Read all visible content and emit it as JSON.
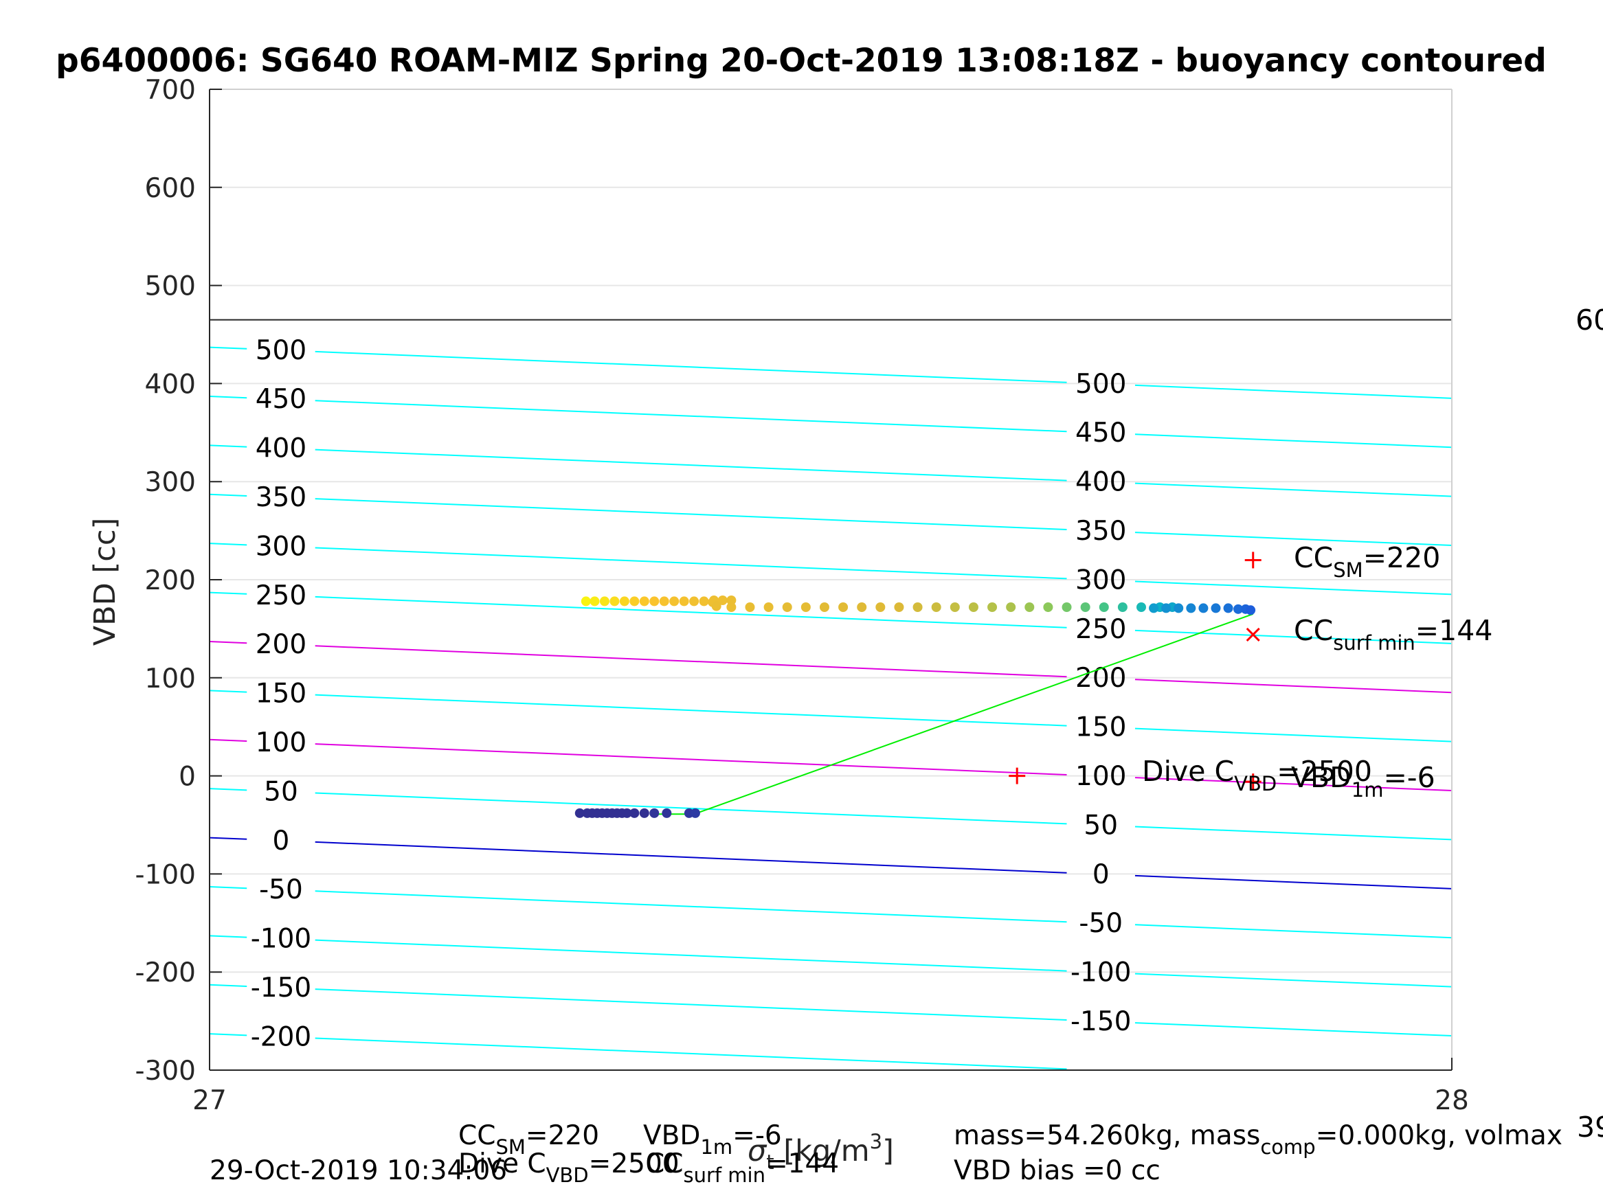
{
  "title": "p6400006: SG640 ROAM-MIZ Spring 20-Oct-2019 13:08:18Z - buoyancy contoured",
  "ylabel": "VBD [cc]",
  "xlabel_prefix": "σ",
  "xlabel_sub": "t",
  "xlabel_unit": " [kg/m",
  "xlabel_sup": "3",
  "xlabel_close": "]",
  "colors": {
    "contour": "#00ffff",
    "contour_zero": "#0000cd",
    "magenta": "#e000e0",
    "fit_line": "#00ee00",
    "marker": "#ff0000",
    "axis": "#262626",
    "grid": "#e6e6e6"
  },
  "chart_data": {
    "type": "scatter",
    "title": "p6400006: SG640 ROAM-MIZ Spring 20-Oct-2019 13:08:18Z - buoyancy contoured",
    "xlabel": "σt [kg/m3]",
    "ylabel": "VBD [cc]",
    "xlim": [
      27,
      28
    ],
    "ylim": [
      -300,
      700
    ],
    "xticks": [
      "27",
      "28"
    ],
    "yticks": [
      "-300",
      "-200",
      "-100",
      "0",
      "100",
      "200",
      "300",
      "400",
      "500",
      "600",
      "700"
    ],
    "grid": true,
    "horizontal_line": {
      "y": 465
    },
    "buoyancy_contours": {
      "levels": [
        -200,
        -150,
        -100,
        -50,
        0,
        50,
        100,
        150,
        200,
        250,
        300,
        350,
        400,
        450,
        500
      ],
      "left_labels": [
        "-200",
        "-150",
        "-100",
        "-50",
        "0",
        "50",
        "100",
        "150",
        "200",
        "250",
        "300",
        "350",
        "400",
        "450",
        "500"
      ],
      "right_labels": [
        "-150",
        "-100",
        "-50",
        "0",
        "50",
        "100",
        "150",
        "200",
        "250",
        "300",
        "350",
        "400",
        "450",
        "500"
      ],
      "vbd_at_x27": {
        "-200": -263,
        "-150": -213,
        "-100": -163,
        "-50": -113,
        "0": -63,
        "50": -13,
        "100": 37,
        "150": 87,
        "200": 137,
        "250": 187,
        "300": 237,
        "350": 287,
        "400": 337,
        "450": 387,
        "500": 437
      },
      "slope_vbd_per_sigma": -52,
      "magenta_levels": [
        100,
        200
      ],
      "zero_level": 0
    },
    "series": [
      {
        "name": "",
        "kind": "scatter",
        "colormap": "parula",
        "points": [
          {
            "x": 27.303,
            "y": 178,
            "c": 0.98
          },
          {
            "x": 27.31,
            "y": 178,
            "c": 0.96
          },
          {
            "x": 27.318,
            "y": 178,
            "c": 0.94
          },
          {
            "x": 27.326,
            "y": 178,
            "c": 0.92
          },
          {
            "x": 27.334,
            "y": 178,
            "c": 0.9
          },
          {
            "x": 27.342,
            "y": 178,
            "c": 0.88
          },
          {
            "x": 27.35,
            "y": 178,
            "c": 0.86
          },
          {
            "x": 27.358,
            "y": 178,
            "c": 0.85
          },
          {
            "x": 27.366,
            "y": 178,
            "c": 0.84
          },
          {
            "x": 27.374,
            "y": 178,
            "c": 0.83
          },
          {
            "x": 27.382,
            "y": 178,
            "c": 0.83
          },
          {
            "x": 27.39,
            "y": 178,
            "c": 0.82
          },
          {
            "x": 27.398,
            "y": 178,
            "c": 0.82
          },
          {
            "x": 27.406,
            "y": 179,
            "c": 0.81
          },
          {
            "x": 27.413,
            "y": 179,
            "c": 0.81
          },
          {
            "x": 27.42,
            "y": 179,
            "c": 0.8
          },
          {
            "x": 27.405,
            "y": 177,
            "c": 0.81
          },
          {
            "x": 27.408,
            "y": 173,
            "c": 0.8
          },
          {
            "x": 27.42,
            "y": 172,
            "c": 0.8
          },
          {
            "x": 27.435,
            "y": 172,
            "c": 0.79
          },
          {
            "x": 27.45,
            "y": 172,
            "c": 0.79
          },
          {
            "x": 27.465,
            "y": 172,
            "c": 0.78
          },
          {
            "x": 27.48,
            "y": 172,
            "c": 0.78
          },
          {
            "x": 27.495,
            "y": 172,
            "c": 0.77
          },
          {
            "x": 27.51,
            "y": 172,
            "c": 0.77
          },
          {
            "x": 27.525,
            "y": 172,
            "c": 0.76
          },
          {
            "x": 27.54,
            "y": 172,
            "c": 0.76
          },
          {
            "x": 27.555,
            "y": 172,
            "c": 0.75
          },
          {
            "x": 27.57,
            "y": 172,
            "c": 0.74
          },
          {
            "x": 27.585,
            "y": 172,
            "c": 0.73
          },
          {
            "x": 27.6,
            "y": 172,
            "c": 0.72
          },
          {
            "x": 27.615,
            "y": 172,
            "c": 0.71
          },
          {
            "x": 27.63,
            "y": 172,
            "c": 0.7
          },
          {
            "x": 27.645,
            "y": 172,
            "c": 0.69
          },
          {
            "x": 27.66,
            "y": 172,
            "c": 0.67
          },
          {
            "x": 27.675,
            "y": 172,
            "c": 0.65
          },
          {
            "x": 27.69,
            "y": 172,
            "c": 0.62
          },
          {
            "x": 27.705,
            "y": 172,
            "c": 0.59
          },
          {
            "x": 27.72,
            "y": 172,
            "c": 0.56
          },
          {
            "x": 27.735,
            "y": 172,
            "c": 0.52
          },
          {
            "x": 27.75,
            "y": 172,
            "c": 0.48
          },
          {
            "x": 27.765,
            "y": 172,
            "c": 0.44
          },
          {
            "x": 27.775,
            "y": 172,
            "c": 0.4
          },
          {
            "x": 27.76,
            "y": 171,
            "c": 0.36
          },
          {
            "x": 27.77,
            "y": 171,
            "c": 0.32
          },
          {
            "x": 27.78,
            "y": 171,
            "c": 0.3
          },
          {
            "x": 27.79,
            "y": 171,
            "c": 0.28
          },
          {
            "x": 27.8,
            "y": 171,
            "c": 0.26
          },
          {
            "x": 27.81,
            "y": 171,
            "c": 0.24
          },
          {
            "x": 27.82,
            "y": 171,
            "c": 0.22
          },
          {
            "x": 27.828,
            "y": 170,
            "c": 0.2
          },
          {
            "x": 27.834,
            "y": 170,
            "c": 0.18
          },
          {
            "x": 27.838,
            "y": 169,
            "c": 0.16
          },
          {
            "x": 27.298,
            "y": -38,
            "c": 0.02
          },
          {
            "x": 27.304,
            "y": -38,
            "c": 0.02
          },
          {
            "x": 27.308,
            "y": -38,
            "c": 0.02
          },
          {
            "x": 27.312,
            "y": -38,
            "c": 0.02
          },
          {
            "x": 27.316,
            "y": -38,
            "c": 0.02
          },
          {
            "x": 27.32,
            "y": -38,
            "c": 0.02
          },
          {
            "x": 27.324,
            "y": -38,
            "c": 0.02
          },
          {
            "x": 27.328,
            "y": -38,
            "c": 0.02
          },
          {
            "x": 27.332,
            "y": -38,
            "c": 0.02
          },
          {
            "x": 27.336,
            "y": -38,
            "c": 0.02
          },
          {
            "x": 27.342,
            "y": -38,
            "c": 0.02
          },
          {
            "x": 27.35,
            "y": -38,
            "c": 0.02
          },
          {
            "x": 27.358,
            "y": -38,
            "c": 0.03
          },
          {
            "x": 27.368,
            "y": -38,
            "c": 0.03
          },
          {
            "x": 27.386,
            "y": -38,
            "c": 0.04
          },
          {
            "x": 27.391,
            "y": -38,
            "c": 0.05
          }
        ]
      },
      {
        "name": "",
        "kind": "line",
        "points": [
          {
            "x": 27.355,
            "y": -39
          },
          {
            "x": 27.39,
            "y": -39
          },
          {
            "x": 27.84,
            "y": 165
          }
        ]
      }
    ],
    "markers": [
      {
        "shape": "plus",
        "x": 27.84,
        "y": 220
      },
      {
        "shape": "x",
        "x": 27.84,
        "y": 144
      },
      {
        "shape": "plus",
        "x": 27.65,
        "y": 0
      },
      {
        "shape": "plus",
        "x": 27.84,
        "y": -6
      }
    ],
    "annotations": {
      "cc_sm": {
        "main": "CC",
        "sub": "SM",
        "value": "=220"
      },
      "cc_surf": {
        "main": "CC",
        "sub": "surf min",
        "value": "=144"
      },
      "dive_c": {
        "main": "Dive C",
        "sub": "VBD",
        "value": "=2500"
      },
      "vbd_1m": {
        "main": "VBD",
        "sub": "1m",
        "value": "=-6"
      },
      "right_edge_top": "60",
      "right_edge_bottom": "39"
    },
    "footer": {
      "timestamp": "29-Oct-2019 10:34:06",
      "cc_sm": {
        "main": "CC",
        "sub": "SM",
        "value": "=220"
      },
      "vbd_1m": {
        "main": "VBD",
        "sub": "1m",
        "value": "=-6"
      },
      "dive_c": {
        "main": "Dive C",
        "sub": "VBD",
        "value": "=2500"
      },
      "cc_surf": {
        "main": "CC",
        "sub": "surf min",
        "value": "=144"
      },
      "mass_line": {
        "part1": "mass=54.260kg, mass",
        "sub": "comp",
        "part2": "=0.000kg, volmax"
      },
      "vbd_bias": "VBD bias =0 cc"
    }
  }
}
